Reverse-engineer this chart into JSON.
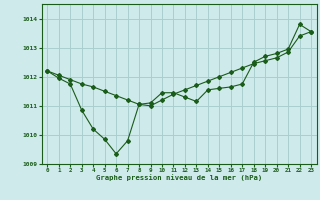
{
  "xlabel": "Graphe pression niveau de la mer (hPa)",
  "bg_color": "#ceeaea",
  "grid_color": "#aacece",
  "line_color": "#1a5c1a",
  "x_values": [
    0,
    1,
    2,
    3,
    4,
    5,
    6,
    7,
    8,
    9,
    10,
    11,
    12,
    13,
    14,
    15,
    16,
    17,
    18,
    19,
    20,
    21,
    22,
    23
  ],
  "line1_y": [
    1012.2,
    1011.95,
    1011.75,
    1010.85,
    1010.2,
    1009.85,
    1009.35,
    1009.8,
    1011.05,
    1011.1,
    1011.45,
    1011.45,
    1011.3,
    1011.15,
    1011.55,
    1011.6,
    1011.65,
    1011.75,
    1012.5,
    1012.7,
    1012.8,
    1012.95,
    1013.8,
    1013.55
  ],
  "line2_y": [
    1012.2,
    1012.05,
    1011.9,
    1011.75,
    1011.65,
    1011.5,
    1011.35,
    1011.2,
    1011.05,
    1011.0,
    1011.2,
    1011.4,
    1011.55,
    1011.7,
    1011.85,
    1012.0,
    1012.15,
    1012.3,
    1012.45,
    1012.55,
    1012.65,
    1012.85,
    1013.4,
    1013.55
  ],
  "ylim": [
    1009.0,
    1014.5
  ],
  "xlim": [
    -0.5,
    23.5
  ],
  "yticks": [
    1009,
    1010,
    1011,
    1012,
    1013,
    1014
  ],
  "xticks": [
    0,
    1,
    2,
    3,
    4,
    5,
    6,
    7,
    8,
    9,
    10,
    11,
    12,
    13,
    14,
    15,
    16,
    17,
    18,
    19,
    20,
    21,
    22,
    23
  ]
}
